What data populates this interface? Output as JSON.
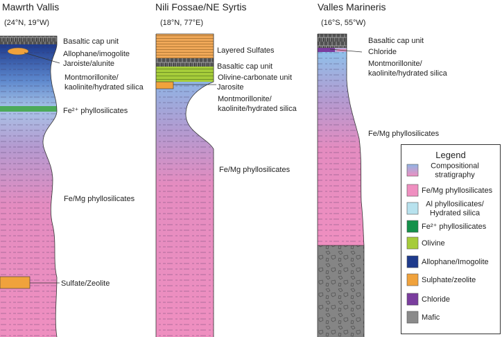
{
  "columns": [
    {
      "title": "Mawrth Vallis",
      "coords": "(24°N, 19°W)",
      "labels": [
        "Basaltic cap unit",
        "Allophane/imogolite",
        "Jaroiste/alunite",
        "Montmorillonite/",
        "kaolinite/hydrated silica",
        "Fe²⁺ phyllosilicates",
        "Fe/Mg phyllosilicates",
        "Sulfate/Zeolite"
      ]
    },
    {
      "title": "Nili Fossae/NE Syrtis",
      "coords": "(18°N, 77°E)",
      "labels": [
        "Layered Sulfates",
        "Basaltic cap unit",
        "Olivine-carbonate unit",
        "Jarosite",
        "Montmorillonite/",
        "kaolinite/hydrated silica",
        "Fe/Mg phyllosilicates"
      ]
    },
    {
      "title": "Valles Marineris",
      "coords": "(16°S, 55°W)",
      "labels": [
        "Basaltic cap unit",
        "Chloride",
        "Montmorillonite/",
        "kaolinite/hydrated silica",
        "Fe/Mg phyllosilicates"
      ]
    }
  ],
  "legend": {
    "title": "Legend",
    "items": [
      {
        "label": [
          "Compositional",
          "stratigraphy"
        ],
        "color": "gradient"
      },
      {
        "label": [
          "Fe/Mg phyllosilicates"
        ],
        "color": "#ef8fc0"
      },
      {
        "label": [
          "Al phyllosilicates/",
          "Hydrated silica"
        ],
        "color": "#b8e2ee"
      },
      {
        "label": [
          "Fe²⁺ phyllosilicates"
        ],
        "color": "#14914a"
      },
      {
        "label": [
          "Olivine"
        ],
        "color": "#a6cc3a"
      },
      {
        "label": [
          "Allophane/Imogolite"
        ],
        "color": "#1e3a8c"
      },
      {
        "label": [
          "Sulphate/zeolite"
        ],
        "color": "#f0a23c"
      },
      {
        "label": [
          "Chloride"
        ],
        "color": "#7a3d9e"
      },
      {
        "label": [
          "Mafic"
        ],
        "color": "#8a8a8a"
      }
    ]
  }
}
